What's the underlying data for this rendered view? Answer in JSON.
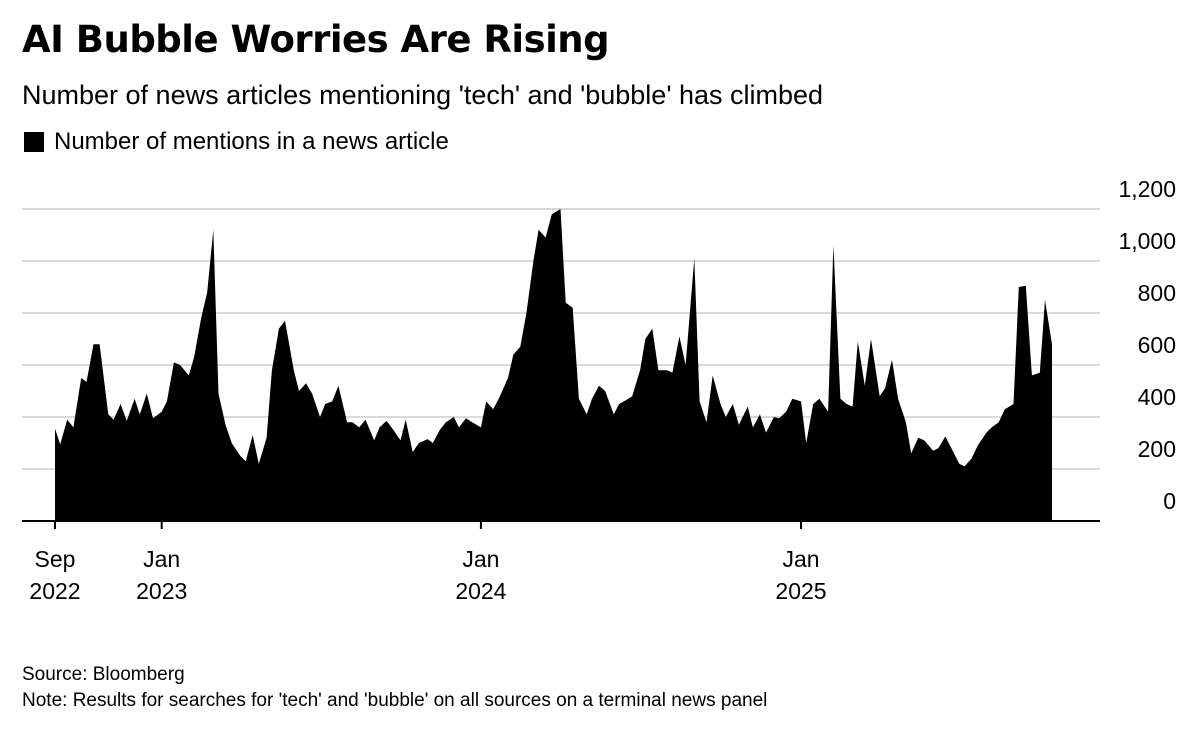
{
  "title": "AI Bubble Worries Are Rising",
  "subtitle": "Number of news articles mentioning 'tech' and 'bubble' has climbed",
  "colors": {
    "fill": "#000000",
    "grid": "#d9d9d9",
    "axis": "#000000"
  },
  "footer": {
    "source": "Source: Bloomberg",
    "note": "Note: Results for searches for 'tech' and 'bubble' on all sources on a terminal news panel"
  },
  "chart_data": {
    "type": "area",
    "legend": "Number of mentions in a news article",
    "legend_position": "top-left",
    "grid": true,
    "x_range": [
      "2022-09-01",
      "2025-10-15"
    ],
    "ylim": [
      0,
      1200
    ],
    "y_ticks": [
      0,
      200,
      400,
      600,
      800,
      1000,
      1200
    ],
    "x_ticks": [
      {
        "date": "2022-09-01",
        "line1": "Sep",
        "line2": "2022"
      },
      {
        "date": "2023-01-01",
        "line1": "Jan",
        "line2": "2023"
      },
      {
        "date": "2024-01-01",
        "line1": "Jan",
        "line2": "2024"
      },
      {
        "date": "2025-01-01",
        "line1": "Jan",
        "line2": "2025"
      }
    ],
    "series": [
      {
        "values": [
          [
            "2022-09-01",
            355
          ],
          [
            "2022-09-07",
            295
          ],
          [
            "2022-09-15",
            390
          ],
          [
            "2022-09-22",
            360
          ],
          [
            "2022-10-01",
            550
          ],
          [
            "2022-10-07",
            535
          ],
          [
            "2022-10-15",
            680
          ],
          [
            "2022-10-22",
            680
          ],
          [
            "2022-11-01",
            410
          ],
          [
            "2022-11-07",
            390
          ],
          [
            "2022-11-15",
            450
          ],
          [
            "2022-11-22",
            385
          ],
          [
            "2022-12-01",
            470
          ],
          [
            "2022-12-07",
            410
          ],
          [
            "2022-12-15",
            490
          ],
          [
            "2022-12-22",
            395
          ],
          [
            "2023-01-01",
            420
          ],
          [
            "2023-01-07",
            460
          ],
          [
            "2023-01-15",
            610
          ],
          [
            "2023-01-22",
            600
          ],
          [
            "2023-02-01",
            560
          ],
          [
            "2023-02-07",
            630
          ],
          [
            "2023-02-15",
            780
          ],
          [
            "2023-02-22",
            880
          ],
          [
            "2023-03-01",
            1120
          ],
          [
            "2023-03-07",
            490
          ],
          [
            "2023-03-15",
            370
          ],
          [
            "2023-03-22",
            300
          ],
          [
            "2023-04-01",
            250
          ],
          [
            "2023-04-07",
            230
          ],
          [
            "2023-04-15",
            330
          ],
          [
            "2023-04-22",
            220
          ],
          [
            "2023-05-01",
            320
          ],
          [
            "2023-05-07",
            580
          ],
          [
            "2023-05-15",
            740
          ],
          [
            "2023-05-22",
            770
          ],
          [
            "2023-06-01",
            580
          ],
          [
            "2023-06-07",
            500
          ],
          [
            "2023-06-15",
            530
          ],
          [
            "2023-06-22",
            490
          ],
          [
            "2023-07-01",
            400
          ],
          [
            "2023-07-07",
            450
          ],
          [
            "2023-07-15",
            460
          ],
          [
            "2023-07-22",
            520
          ],
          [
            "2023-08-01",
            380
          ],
          [
            "2023-08-07",
            380
          ],
          [
            "2023-08-15",
            360
          ],
          [
            "2023-08-22",
            390
          ],
          [
            "2023-09-01",
            310
          ],
          [
            "2023-09-07",
            360
          ],
          [
            "2023-09-15",
            385
          ],
          [
            "2023-09-22",
            355
          ],
          [
            "2023-10-01",
            310
          ],
          [
            "2023-10-07",
            390
          ],
          [
            "2023-10-15",
            265
          ],
          [
            "2023-10-22",
            300
          ],
          [
            "2023-11-01",
            315
          ],
          [
            "2023-11-07",
            300
          ],
          [
            "2023-11-15",
            350
          ],
          [
            "2023-11-22",
            380
          ],
          [
            "2023-12-01",
            400
          ],
          [
            "2023-12-07",
            360
          ],
          [
            "2023-12-15",
            395
          ],
          [
            "2023-12-22",
            380
          ],
          [
            "2024-01-01",
            360
          ],
          [
            "2024-01-07",
            460
          ],
          [
            "2024-01-15",
            430
          ],
          [
            "2024-01-22",
            475
          ],
          [
            "2024-02-01",
            550
          ],
          [
            "2024-02-07",
            640
          ],
          [
            "2024-02-15",
            670
          ],
          [
            "2024-02-22",
            800
          ],
          [
            "2024-03-01",
            1000
          ],
          [
            "2024-03-07",
            1120
          ],
          [
            "2024-03-15",
            1090
          ],
          [
            "2024-03-22",
            1180
          ],
          [
            "2024-04-01",
            1200
          ],
          [
            "2024-04-07",
            840
          ],
          [
            "2024-04-15",
            820
          ],
          [
            "2024-04-22",
            470
          ],
          [
            "2024-05-01",
            410
          ],
          [
            "2024-05-07",
            470
          ],
          [
            "2024-05-15",
            520
          ],
          [
            "2024-05-22",
            500
          ],
          [
            "2024-06-01",
            410
          ],
          [
            "2024-06-07",
            450
          ],
          [
            "2024-06-15",
            465
          ],
          [
            "2024-06-22",
            480
          ],
          [
            "2024-07-01",
            580
          ],
          [
            "2024-07-07",
            700
          ],
          [
            "2024-07-15",
            740
          ],
          [
            "2024-07-22",
            580
          ],
          [
            "2024-08-01",
            580
          ],
          [
            "2024-08-07",
            570
          ],
          [
            "2024-08-15",
            710
          ],
          [
            "2024-08-22",
            600
          ],
          [
            "2024-09-01",
            1010
          ],
          [
            "2024-09-07",
            460
          ],
          [
            "2024-09-15",
            380
          ],
          [
            "2024-09-22",
            560
          ],
          [
            "2024-10-01",
            450
          ],
          [
            "2024-10-07",
            400
          ],
          [
            "2024-10-15",
            450
          ],
          [
            "2024-10-22",
            370
          ],
          [
            "2024-11-01",
            440
          ],
          [
            "2024-11-07",
            360
          ],
          [
            "2024-11-15",
            410
          ],
          [
            "2024-11-22",
            340
          ],
          [
            "2024-12-01",
            400
          ],
          [
            "2024-12-07",
            395
          ],
          [
            "2024-12-15",
            420
          ],
          [
            "2024-12-22",
            470
          ],
          [
            "2025-01-01",
            460
          ],
          [
            "2025-01-07",
            300
          ],
          [
            "2025-01-15",
            450
          ],
          [
            "2025-01-22",
            470
          ],
          [
            "2025-02-01",
            420
          ],
          [
            "2025-02-07",
            1060
          ],
          [
            "2025-02-15",
            470
          ],
          [
            "2025-02-22",
            450
          ],
          [
            "2025-03-01",
            440
          ],
          [
            "2025-03-07",
            690
          ],
          [
            "2025-03-15",
            520
          ],
          [
            "2025-03-22",
            700
          ],
          [
            "2025-04-01",
            480
          ],
          [
            "2025-04-07",
            510
          ],
          [
            "2025-04-15",
            620
          ],
          [
            "2025-04-22",
            470
          ],
          [
            "2025-05-01",
            380
          ],
          [
            "2025-05-07",
            260
          ],
          [
            "2025-05-15",
            320
          ],
          [
            "2025-05-22",
            310
          ],
          [
            "2025-06-01",
            270
          ],
          [
            "2025-06-07",
            280
          ],
          [
            "2025-06-15",
            325
          ],
          [
            "2025-06-22",
            280
          ],
          [
            "2025-07-01",
            220
          ],
          [
            "2025-07-07",
            210
          ],
          [
            "2025-07-15",
            240
          ],
          [
            "2025-07-22",
            290
          ],
          [
            "2025-08-01",
            340
          ],
          [
            "2025-08-07",
            360
          ],
          [
            "2025-08-15",
            380
          ],
          [
            "2025-08-22",
            430
          ],
          [
            "2025-09-01",
            450
          ],
          [
            "2025-09-07",
            900
          ],
          [
            "2025-09-15",
            905
          ],
          [
            "2025-09-22",
            560
          ],
          [
            "2025-10-01",
            570
          ],
          [
            "2025-10-07",
            850
          ],
          [
            "2025-10-15",
            680
          ]
        ]
      }
    ]
  }
}
